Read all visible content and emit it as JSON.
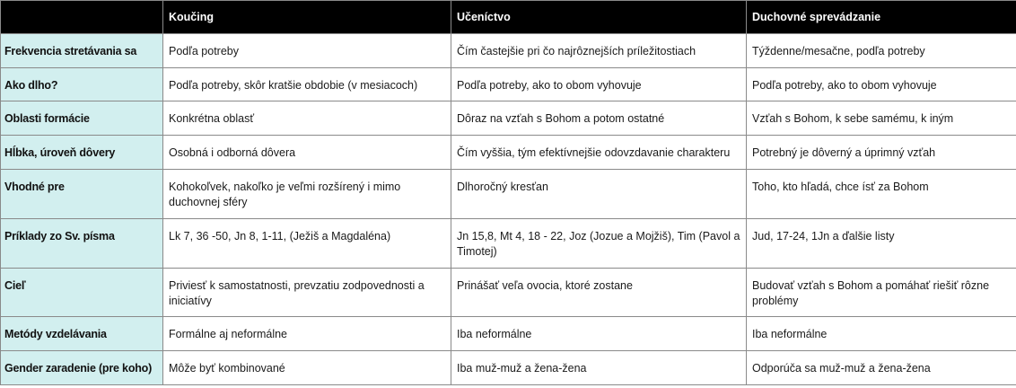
{
  "columns": [
    "",
    "Koučing",
    "Učeníctvo",
    "Duchovné sprevádzanie"
  ],
  "rows": [
    {
      "label": "Frekvencia stretávania sa",
      "cells": [
        "Podľa potreby",
        "Čím častejšie pri čo najrôznejších príležitostiach",
        "Týždenne/mesačne, podľa potreby"
      ]
    },
    {
      "label": "Ako dlho?",
      "cells": [
        "Podľa potreby, skôr kratšie obdobie (v mesiacoch)",
        "Podľa potreby, ako to obom vyhovuje",
        "Podľa potreby, ako to obom vyhovuje"
      ]
    },
    {
      "label": "Oblasti formácie",
      "cells": [
        "Konkrétna oblasť",
        "Dôraz na vzťah s Bohom a potom ostatné",
        "Vzťah s Bohom, k sebe samému, k iným"
      ]
    },
    {
      "label": "Hĺbka, úroveň dôvery",
      "cells": [
        "Osobná i odborná dôvera",
        "Čím vyššia, tým efektívnejšie odovzdavanie charakteru",
        "Potrebný je dôverný a úprimný vzťah"
      ]
    },
    {
      "label": "Vhodné pre",
      "cells": [
        "Kohokoľvek, nakoľko je veľmi rozšírený i mimo duchovnej sféry",
        "Dlhoročný kresťan",
        "Toho, kto hľadá, chce ísť za Bohom"
      ]
    },
    {
      "label": "Príklady zo Sv. písma",
      "cells": [
        "Lk 7, 36 -50, Jn 8, 1-11, (Ježiš a Magdaléna)",
        "Jn 15,8, Mt 4, 18 - 22, Joz (Jozue a Mojžiš), Tim (Pavol a Timotej)",
        "Jud, 17-24, 1Jn a ďalšie listy"
      ]
    },
    {
      "label": "Cieľ",
      "cells": [
        "Priviesť k samostatnosti, prevzatiu zodpovednosti a iniciatívy",
        "Prinášať veľa ovocia, ktoré zostane",
        "Budovať vzťah s Bohom a pomáhať riešiť rôzne problémy"
      ]
    },
    {
      "label": "Metódy vzdelávania",
      "cells": [
        "Formálne aj neformálne",
        "Iba neformálne",
        "Iba neformálne"
      ]
    },
    {
      "label": "Gender zaradenie (pre koho)",
      "cells": [
        "Môže byť kombinované",
        "Iba muž-muž a žena-žena",
        "Odporúča sa muž-muž a žena-žena"
      ]
    }
  ]
}
